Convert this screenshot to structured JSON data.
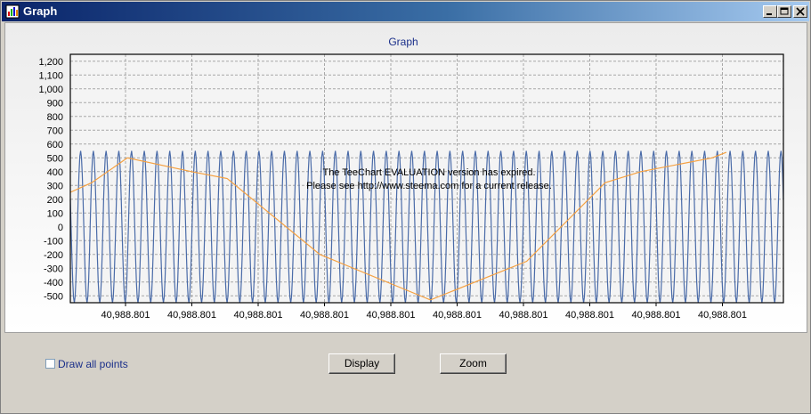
{
  "window": {
    "title": "Graph",
    "controls": [
      "minimize-icon",
      "maximize-icon",
      "close-icon"
    ]
  },
  "chart_panel": {
    "watermark_line1": "The TeeChart EVALUATION version has expired.",
    "watermark_line2": "Please see http://www.steema.com for a current release."
  },
  "chart_data": {
    "type": "line",
    "title": "Graph",
    "xlabel": "",
    "ylabel": "",
    "ylim": [
      -550,
      1250
    ],
    "grid": true,
    "y_ticks": [
      "1,200",
      "1,100",
      "1,000",
      "900",
      "800",
      "700",
      "600",
      "500",
      "400",
      "300",
      "200",
      "100",
      "0",
      "-100",
      "-200",
      "-300",
      "-400",
      "-500"
    ],
    "y_tick_values": [
      1200,
      1100,
      1000,
      900,
      800,
      700,
      600,
      500,
      400,
      300,
      200,
      100,
      0,
      -100,
      -200,
      -300,
      -400,
      -500
    ],
    "x_ticks": [
      "40,988.801",
      "40,988.801",
      "40,988.801",
      "40,988.801",
      "40,988.801",
      "40,988.801",
      "40,988.801",
      "40,988.801",
      "40,988.801",
      "40,988.801"
    ],
    "series": [
      {
        "kind": "oscillation",
        "color": "#4a6ba8",
        "amplitude": 550,
        "cycles": 56
      },
      {
        "color": "#f5a040",
        "x": [
          0,
          0.03,
          0.08,
          0.17,
          0.22,
          0.35,
          0.505,
          0.64,
          0.75,
          0.8,
          0.9,
          0.92
        ],
        "values": [
          250,
          320,
          500,
          400,
          350,
          -200,
          -530,
          -250,
          320,
          400,
          500,
          540
        ]
      }
    ]
  },
  "controls": {
    "draw_all_points_label": "Draw all points",
    "draw_all_points_checked": false,
    "display_button": "Display",
    "zoom_button": "Zoom"
  },
  "colors": {
    "title_text": "#1a2f8a",
    "oscillation": "#4a6ba8",
    "trend": "#f5a040"
  }
}
